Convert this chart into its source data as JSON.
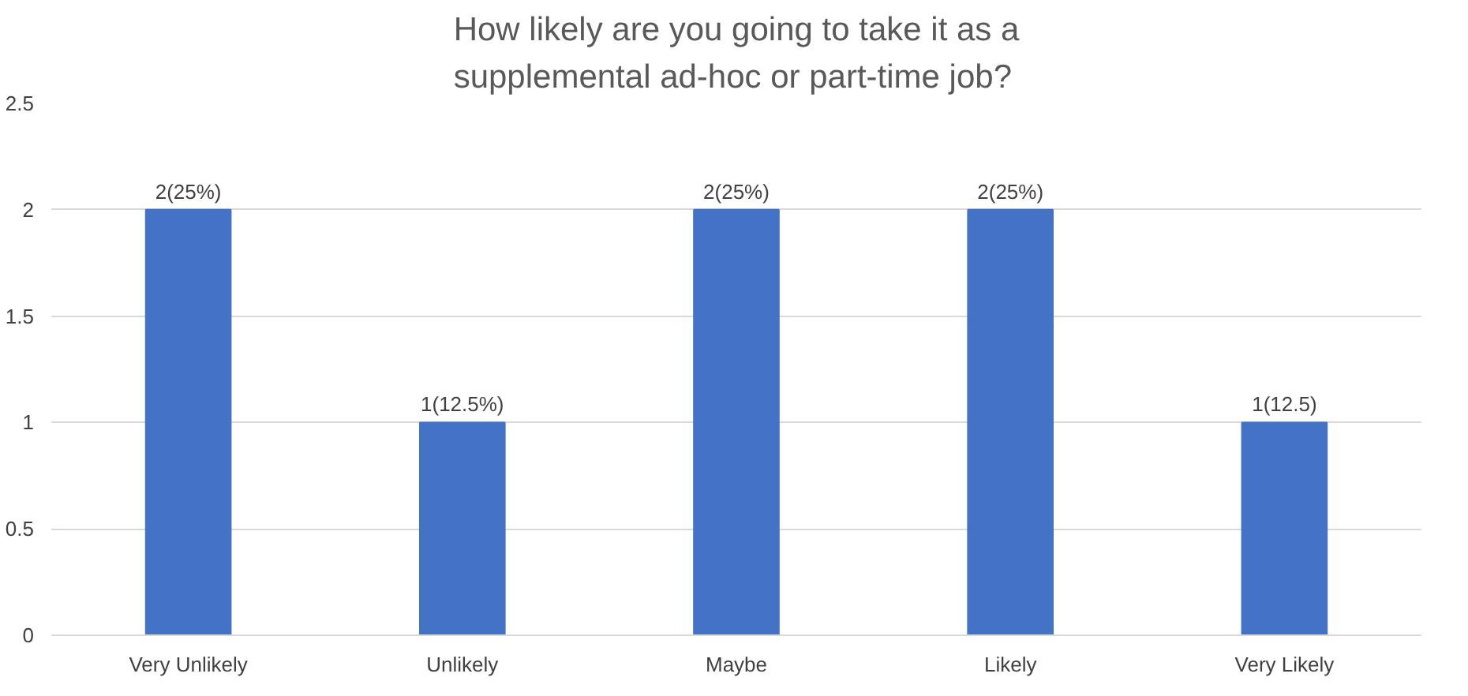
{
  "chart_data": {
    "type": "bar",
    "title": "How likely are you going to take it as a\nsupplemental ad-hoc or part-time job?",
    "categories": [
      "Very Unlikely",
      "Unlikely",
      "Maybe",
      "Likely",
      "Very Likely"
    ],
    "values": [
      2,
      1,
      2,
      2,
      1
    ],
    "color": "#4472c4",
    "value_labels": [
      "2(25%)",
      "1(12.5%)",
      "2(25%)",
      "2(25%)",
      "1(12.5)"
    ],
    "ylim": [
      0,
      2.5
    ],
    "yticks": [
      0,
      0.5,
      1,
      1.5,
      2,
      2.5
    ],
    "grid": "y"
  }
}
